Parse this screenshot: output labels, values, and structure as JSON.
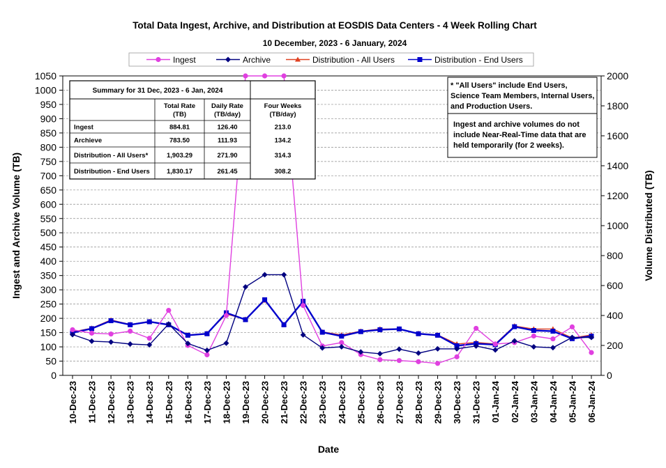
{
  "chart_data": {
    "type": "line",
    "title": "Total Data Ingest, Archive, and  Distribution at EOSDIS Data Centers - 4 Week Rolling Chart",
    "subtitle": "10  December,  2023  -  6  January, 2024",
    "xlabel": "Date",
    "ylabel_left": "Ingest and Archive Volume (TB)",
    "ylabel_right": "Volume Distributed (TB)",
    "ylim_left": [
      0,
      1050
    ],
    "ylim_right": [
      0,
      2000
    ],
    "yticks_left": [
      "0",
      "50",
      "100",
      "150",
      "200",
      "250",
      "300",
      "350",
      "400",
      "450",
      "500",
      "550",
      "600",
      "650",
      "700",
      "750",
      "800",
      "850",
      "900",
      "950",
      "1000",
      "1050"
    ],
    "yticks_right": [
      "0",
      "200",
      "400",
      "600",
      "800",
      "1000",
      "1200",
      "1400",
      "1600",
      "1800",
      "2000"
    ],
    "grid": "horizontal dashed",
    "legend_position": "top",
    "categories": [
      "10-Dec-23",
      "11-Dec-23",
      "12-Dec-23",
      "13-Dec-23",
      "14-Dec-23",
      "15-Dec-23",
      "16-Dec-23",
      "17-Dec-23",
      "18-Dec-23",
      "19-Dec-23",
      "20-Dec-23",
      "21-Dec-23",
      "22-Dec-23",
      "23-Dec-23",
      "24-Dec-23",
      "25-Dec-23",
      "26-Dec-23",
      "27-Dec-23",
      "28-Dec-23",
      "29-Dec-23",
      "30-Dec-23",
      "31-Dec-23",
      "01-Jan-24",
      "02-Jan-24",
      "03-Jan-24",
      "04-Jan-24",
      "05-Jan-24",
      "06-Jan-24"
    ],
    "series": [
      {
        "name": "Ingest",
        "axis": "left",
        "color": "#e040e0",
        "marker": "circle",
        "values": [
          160,
          148,
          145,
          155,
          130,
          228,
          105,
          72,
          210,
          1050,
          1050,
          1050,
          245,
          103,
          115,
          73,
          55,
          52,
          48,
          42,
          65,
          165,
          110,
          115,
          138,
          128,
          170,
          80
        ]
      },
      {
        "name": "Archive",
        "axis": "left",
        "color": "#000080",
        "marker": "diamond",
        "values": [
          143,
          120,
          117,
          110,
          107,
          180,
          112,
          88,
          113,
          310,
          353,
          353,
          142,
          96,
          100,
          82,
          76,
          92,
          78,
          93,
          93,
          103,
          89,
          121,
          100,
          97,
          133,
          133
        ]
      },
      {
        "name": "Distribution - All Users",
        "axis": "right",
        "color": "#e04020",
        "marker": "triangle",
        "values": [
          290,
          315,
          370,
          340,
          360,
          340,
          270,
          280,
          410,
          375,
          500,
          340,
          490,
          290,
          270,
          295,
          310,
          310,
          280,
          270,
          210,
          220,
          210,
          330,
          310,
          310,
          250,
          270
        ]
      },
      {
        "name": "Distribution - End Users",
        "axis": "right",
        "color": "#0000cc",
        "marker": "square",
        "values": [
          285,
          312,
          365,
          338,
          358,
          338,
          268,
          278,
          418,
          372,
          505,
          338,
          495,
          288,
          262,
          292,
          305,
          310,
          278,
          268,
          198,
          212,
          205,
          325,
          300,
          295,
          245,
          262
        ]
      }
    ],
    "summary_table": {
      "title": "Summary  for  31  Dec, 2023  -  6  Jan,  2024",
      "headers": [
        "",
        "Total Rate\n(TB)",
        "Daily Rate\n(TB/day)",
        "Four Weeks\n(TB/day)"
      ],
      "rows": [
        [
          "Ingest",
          "884.81",
          "126.40",
          "213.0"
        ],
        [
          "Archieve",
          "783.50",
          "111.93",
          "134.2"
        ],
        [
          "Distribution - All Users*",
          "1,903.29",
          "271.90",
          "314.3"
        ],
        [
          "Distribution - End Users",
          "1,830.17",
          "261.45",
          "308.2"
        ]
      ]
    },
    "notes": [
      [
        " * \"All Users\" include End Users,",
        "Science Team Members,  Internal Users,",
        "and Production Users."
      ],
      [
        "Ingest and archive volumes do not",
        "include Near-Real-Time data that are",
        "held temporarily (for 2 weeks)."
      ]
    ]
  }
}
